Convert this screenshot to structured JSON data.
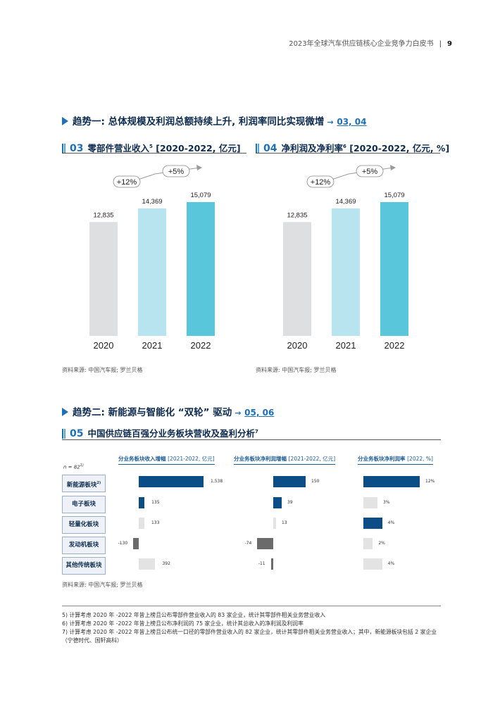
{
  "header": {
    "title": "2023年全球汽车供应链核心企业竞争力白皮书",
    "separator": "|",
    "page": "9"
  },
  "trend1": {
    "title": "趋势一: 总体规模及利润总额持续上升, 利润率同比实现微增",
    "arrow": "→",
    "ref": "03, 04"
  },
  "chart03": {
    "num": "03",
    "title": "零部件营业收入",
    "sup": "5",
    "unit": "[2020-2022, 亿元]",
    "source": "资料来源: 中国汽车报; 罗兰贝格"
  },
  "chart04": {
    "num": "04",
    "title": "净利润及净利率",
    "sup": "6",
    "unit": "[2020-2022, 亿元, %]",
    "source": "资料来源: 中国汽车报; 罗兰贝格"
  },
  "trend2": {
    "title": "趋势二: 新能源与智能化 “双轮” 驱动",
    "arrow": "→",
    "ref": "05, 06"
  },
  "chart05": {
    "num": "05",
    "title": "中国供应链百强分业务板块营收及盈利分析",
    "sup": "7",
    "n_label": "n = 82",
    "n_sup": "1)",
    "source": "资料来源: 中国汽车报; 罗兰贝格"
  },
  "footnotes": [
    "5) 计算考虑 2020 年 -2022 年皆上榜且公布零部件营业收入的 83 家企业，统计其零部件相关业务营业收入",
    "6) 计算考虑 2020 年 -2022 年皆上榜且公布净利润的 75 家企业，统计其总收入的净利润及利润率",
    "7) 计算考虑 2020 年 -2022 年皆上榜且公布统一口径的零部件营业收入的 82 家企业，统计其零部件相关业务营业收入；其中，新能源板块包括 2 家企业（宁德时代、国轩高科）"
  ],
  "chart_data": [
    {
      "type": "bar",
      "title": "零部件营业收入 [2020-2022, 亿元]",
      "categories": [
        "2020",
        "2021",
        "2022"
      ],
      "values": [
        12835,
        14369,
        15079
      ],
      "value_labels": [
        "12,835",
        "14,369",
        "15,079"
      ],
      "colors": [
        "#dedfe1",
        "#b7e4ef",
        "#5ac6dc"
      ],
      "growth_labels": [
        "+12%",
        "+5%"
      ],
      "ylim": [
        0,
        15079
      ]
    },
    {
      "type": "bar",
      "title": "净利润及净利率 [2020-2022, 亿元, %]",
      "categories": [
        "2020",
        "2021",
        "2022"
      ],
      "values": [
        12835,
        14369,
        15079
      ],
      "value_labels": [
        "12,835",
        "14,369",
        "15,079"
      ],
      "colors": [
        "#dedfe1",
        "#b7e4ef",
        "#5ac6dc"
      ],
      "growth_labels": [
        "+12%",
        "+5%"
      ],
      "ylim": [
        0,
        15079
      ]
    },
    {
      "type": "bar",
      "orientation": "horizontal",
      "title": "中国供应链百强分业务板块营收及盈利分析",
      "categories": [
        "新能源板块",
        "电子板块",
        "轻量化板块",
        "发动机板块",
        "其他传统板块"
      ],
      "category_sups": [
        "2)",
        "",
        "",
        "",
        ""
      ],
      "columns": [
        {
          "header": "分业务板块收入增幅",
          "unit": "[2021-2022, 亿元]",
          "values": [
            1538,
            135,
            133,
            -130,
            392
          ],
          "labels": [
            "1,538",
            "135",
            "133",
            "-130",
            "392"
          ],
          "colors": [
            "#0b4d86",
            "#0b4d86",
            "#e3e3e3",
            "#6b6b6b",
            "#e3e3e3"
          ]
        },
        {
          "header": "分业务板块净利润增幅",
          "unit": "[2021-2022, 亿元]",
          "values": [
            150,
            39,
            13,
            -74,
            -11
          ],
          "labels": [
            "150",
            "39",
            "13",
            "-74",
            "-11"
          ],
          "colors": [
            "#0b4d86",
            "#0b4d86",
            "#e3e3e3",
            "#6b6b6b",
            "#6b6b6b"
          ]
        },
        {
          "header": "分业务板块净利润率",
          "unit": "[2022, %]",
          "values": [
            12,
            3,
            4,
            2,
            4
          ],
          "labels": [
            "12%",
            "3%",
            "4%",
            "2%",
            "4%"
          ],
          "colors": [
            "#0b4d86",
            "#e3e3e3",
            "#0b4d86",
            "#e3e3e3",
            "#e3e3e3"
          ]
        }
      ]
    }
  ]
}
